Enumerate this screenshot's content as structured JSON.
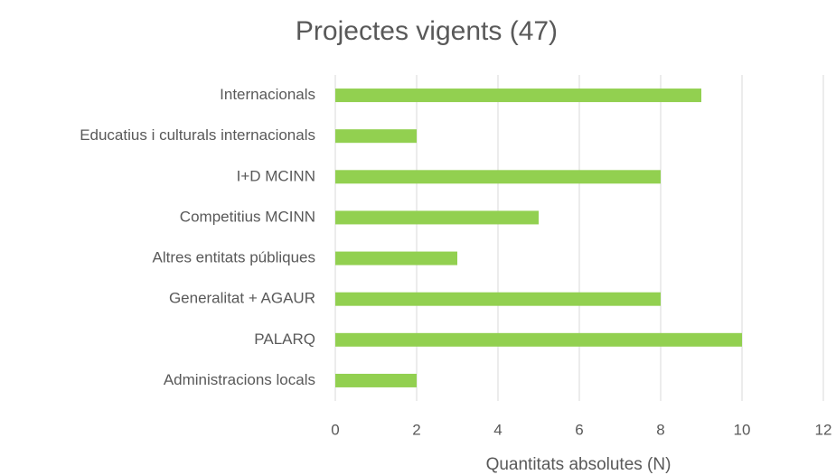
{
  "chart_data": {
    "type": "bar",
    "orientation": "horizontal",
    "title": "Projectes vigents (47)",
    "x_label": "Quantitats absolutes (N)",
    "categories": [
      "Internacionals",
      "Educatius i culturals internacionals",
      "I+D MCINN",
      "Competitius MCINN",
      "Altres entitats públiques",
      "Generalitat + AGAUR",
      "PALARQ",
      "Administracions locals"
    ],
    "values": [
      9,
      2,
      8,
      5,
      3,
      8,
      10,
      2
    ],
    "color": "#92d050",
    "xlim": [
      0,
      12
    ],
    "xticks": [
      0,
      2,
      4,
      6,
      8,
      10,
      12
    ],
    "grid": true
  }
}
